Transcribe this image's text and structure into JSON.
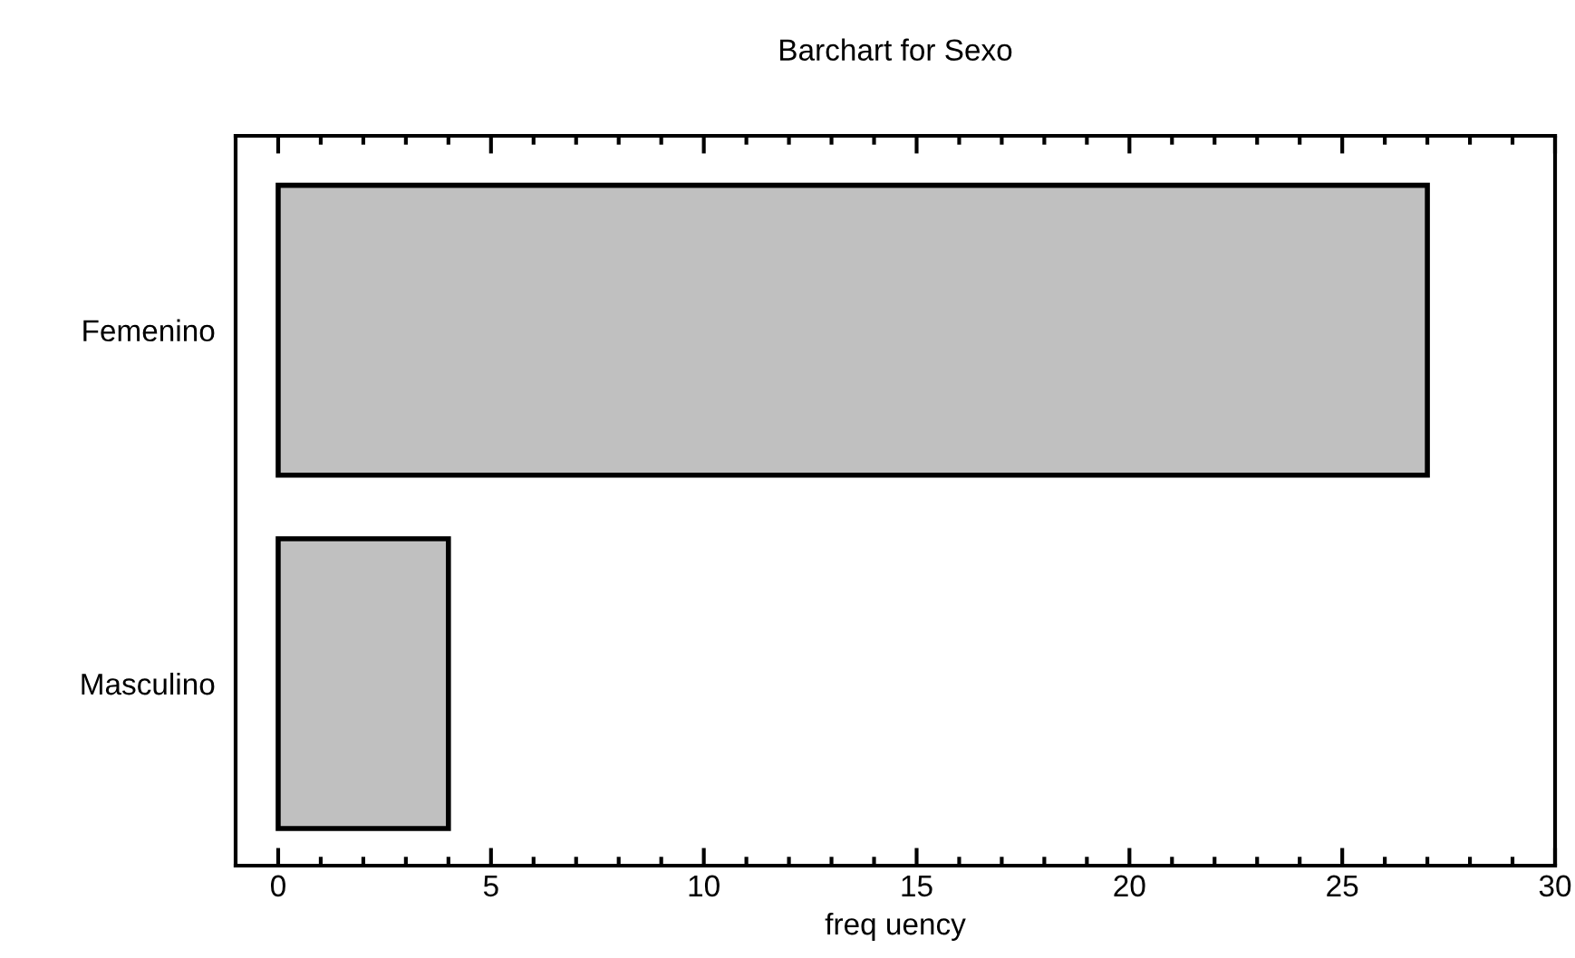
{
  "chart_data": {
    "type": "bar",
    "orientation": "horizontal",
    "title": "Barchart for Sexo",
    "xlabel": "freq uency",
    "categories": [
      "Femenino",
      "Masculino"
    ],
    "values": [
      27,
      4
    ],
    "color": "#c0c0c0",
    "xlim": [
      -1,
      30
    ],
    "xticks": [
      0,
      {
        "value": 1,
        "label": null
      },
      {
        "value": 2,
        "label": null
      },
      {
        "value": 3,
        "label": null
      },
      {
        "value": 4,
        "label": null
      },
      5,
      {
        "value": 6,
        "label": null
      },
      {
        "value": 7,
        "label": null
      },
      {
        "value": 8,
        "label": null
      },
      {
        "value": 9,
        "label": null
      },
      10,
      {
        "value": 11,
        "label": null
      },
      {
        "value": 12,
        "label": null
      },
      {
        "value": 13,
        "label": null
      },
      {
        "value": 14,
        "label": null
      },
      15,
      {
        "value": 16,
        "label": null
      },
      {
        "value": 17,
        "label": null
      },
      {
        "value": 18,
        "label": null
      },
      {
        "value": 19,
        "label": null
      },
      20,
      {
        "value": 21,
        "label": null
      },
      {
        "value": 22,
        "label": null
      },
      {
        "value": 23,
        "label": null
      },
      {
        "value": 24,
        "label": null
      },
      25,
      {
        "value": 26,
        "label": null
      },
      {
        "value": 27,
        "label": null
      },
      {
        "value": 28,
        "label": null
      },
      {
        "value": 29,
        "label": null
      },
      30
    ],
    "grid": false
  }
}
